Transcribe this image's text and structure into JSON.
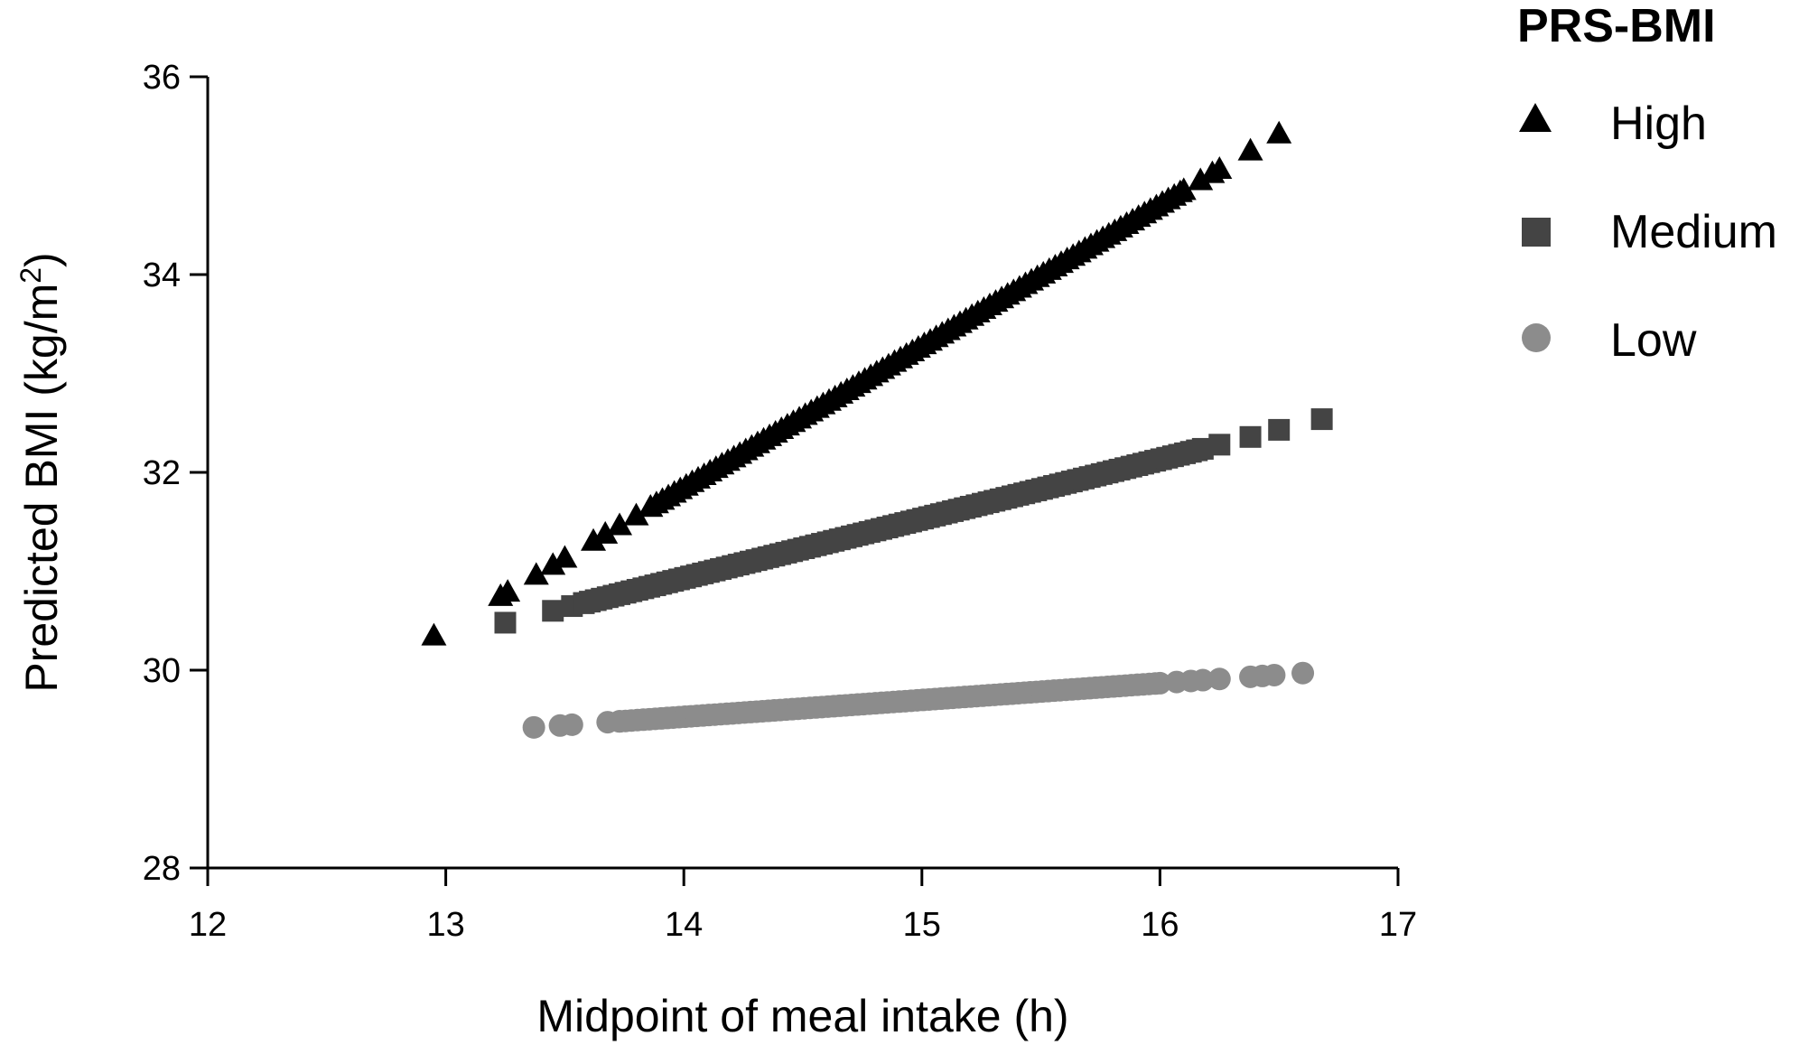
{
  "chart_data": {
    "type": "scatter",
    "xlabel": "Midpoint of meal intake (h)",
    "ylabel_main": "Predicted BMI (kg/m",
    "ylabel_sup": "2",
    "ylabel_close": ")",
    "xlim": [
      12,
      17
    ],
    "ylim": [
      28,
      36
    ],
    "xticks": [
      "12",
      "13",
      "14",
      "15",
      "16",
      "17"
    ],
    "yticks": [
      "28",
      "30",
      "32",
      "34",
      "36"
    ],
    "legend": {
      "title": "PRS-BMI",
      "placement": "right",
      "entries": [
        "High",
        "Medium",
        "Low"
      ]
    },
    "series": [
      {
        "name": "High",
        "marker": "triangle",
        "color": "#000000",
        "intercept": 30.35,
        "slope": 1.43,
        "x_start": 12.95,
        "x_end": 16.5,
        "sparse_x": [
          12.95,
          13.23,
          13.26,
          13.38,
          13.45,
          13.5,
          13.62,
          13.67,
          13.73,
          13.8,
          13.86,
          16.1,
          16.17,
          16.22,
          16.25,
          16.38,
          16.5
        ]
      },
      {
        "name": "Medium",
        "marker": "square",
        "color": "#444444",
        "intercept": 30.3,
        "slope": 0.6,
        "x_start": 13.25,
        "x_end": 16.68,
        "sparse_x": [
          13.25,
          13.45,
          13.53,
          13.58,
          16.18,
          16.25,
          16.38,
          16.5,
          16.68
        ]
      },
      {
        "name": "Low",
        "marker": "circle",
        "color": "#8c8c8c",
        "intercept": 29.35,
        "slope": 0.17,
        "x_start": 13.37,
        "x_end": 16.6,
        "sparse_x": [
          13.37,
          13.48,
          13.53,
          13.68,
          13.73,
          16.0,
          16.07,
          16.13,
          16.18,
          16.25,
          16.38,
          16.43,
          16.48,
          16.6
        ]
      }
    ]
  }
}
